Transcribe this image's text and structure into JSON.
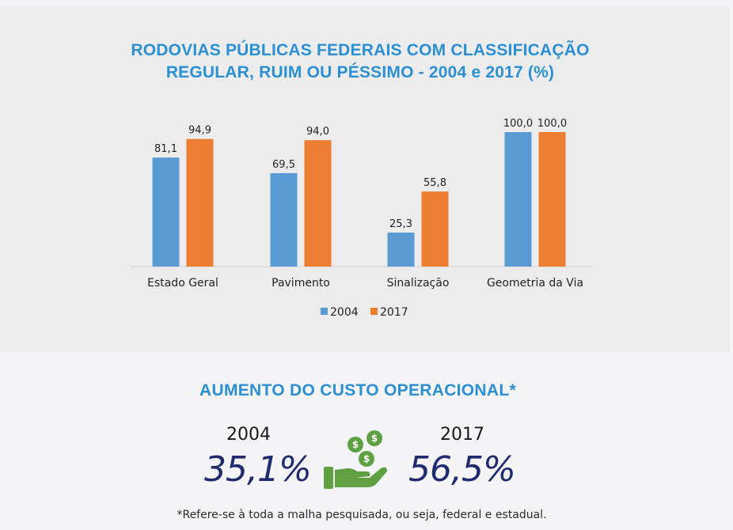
{
  "chart_data": {
    "type": "bar",
    "title_lines": [
      "RODOVIAS PÚBLICAS FEDERAIS COM CLASSIFICAÇÃO",
      "REGULAR, RUIM OU PÉSSIMO - 2004 e 2017 (%)"
    ],
    "categories": [
      "Estado Geral",
      "Pavimento",
      "Sinalização",
      "Geometria da Via"
    ],
    "series": [
      {
        "name": "2004",
        "values": [
          81.1,
          69.5,
          25.3,
          100.0
        ],
        "labels": [
          "81,1",
          "69,5",
          "25,3",
          "100,0"
        ],
        "color": "#5b9bd5"
      },
      {
        "name": "2017",
        "values": [
          94.9,
          94.0,
          55.8,
          100.0
        ],
        "labels": [
          "94,9",
          "94,0",
          "55,8",
          "100,0"
        ],
        "color": "#ed7d31"
      }
    ],
    "ylim": [
      0,
      100
    ],
    "grid": false,
    "legend_position": "bottom-center"
  },
  "summary": {
    "title": "AUMENTO DO CUSTO OPERACIONAL*",
    "left": {
      "year": "2004",
      "value": "35,1%"
    },
    "right": {
      "year": "2017",
      "value": "56,5%"
    },
    "icon": "money-hand-icon",
    "footnote": "*Refere-se à toda a malha pesquisada, ou seja, federal e estadual."
  },
  "colors": {
    "title_blue": "#2b8fd3",
    "value_navy": "#1f2b6e",
    "icon_green": "#5fa043"
  }
}
